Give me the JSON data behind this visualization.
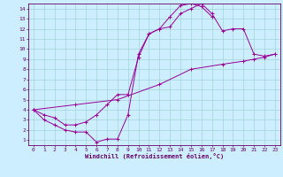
{
  "bg_color": "#cceeff",
  "line_color": "#990099",
  "grid_color": "#99cccc",
  "axis_color": "#660066",
  "tick_color": "#660066",
  "xlabel": "Windchill (Refroidissement éolien,°C)",
  "xlim": [
    -0.5,
    23.5
  ],
  "ylim": [
    0.5,
    14.5
  ],
  "xticks": [
    0,
    1,
    2,
    3,
    4,
    5,
    6,
    7,
    8,
    9,
    10,
    11,
    12,
    13,
    14,
    15,
    16,
    17,
    18,
    19,
    20,
    21,
    22,
    23
  ],
  "yticks": [
    1,
    2,
    3,
    4,
    5,
    6,
    7,
    8,
    9,
    10,
    11,
    12,
    13,
    14
  ],
  "line1_x": [
    0,
    1,
    2,
    3,
    4,
    5,
    6,
    7,
    8,
    9,
    10,
    11,
    12,
    13,
    14,
    15,
    16,
    17
  ],
  "line1_y": [
    4,
    3,
    2.5,
    2.0,
    1.8,
    1.8,
    0.8,
    1.1,
    1.1,
    3.5,
    9.5,
    11.5,
    12.0,
    13.2,
    14.3,
    14.5,
    14.2,
    13.2
  ],
  "line2_x": [
    0,
    1,
    2,
    3,
    4,
    5,
    6,
    7,
    8,
    9,
    10,
    11,
    12,
    13,
    14,
    15,
    16,
    17,
    18,
    19,
    20,
    21,
    22,
    23
  ],
  "line2_y": [
    4,
    3.5,
    3.2,
    2.5,
    2.5,
    2.8,
    3.5,
    4.5,
    5.5,
    5.5,
    9.2,
    11.5,
    12.0,
    12.2,
    13.5,
    14.0,
    14.5,
    13.5,
    11.8,
    12.0,
    12.0,
    9.5,
    9.3,
    9.5
  ],
  "line3_x": [
    0,
    4,
    8,
    12,
    15,
    18,
    20,
    21,
    22,
    23
  ],
  "line3_y": [
    4,
    4.5,
    5.0,
    6.5,
    8.0,
    8.5,
    8.8,
    9.0,
    9.2,
    9.5
  ]
}
